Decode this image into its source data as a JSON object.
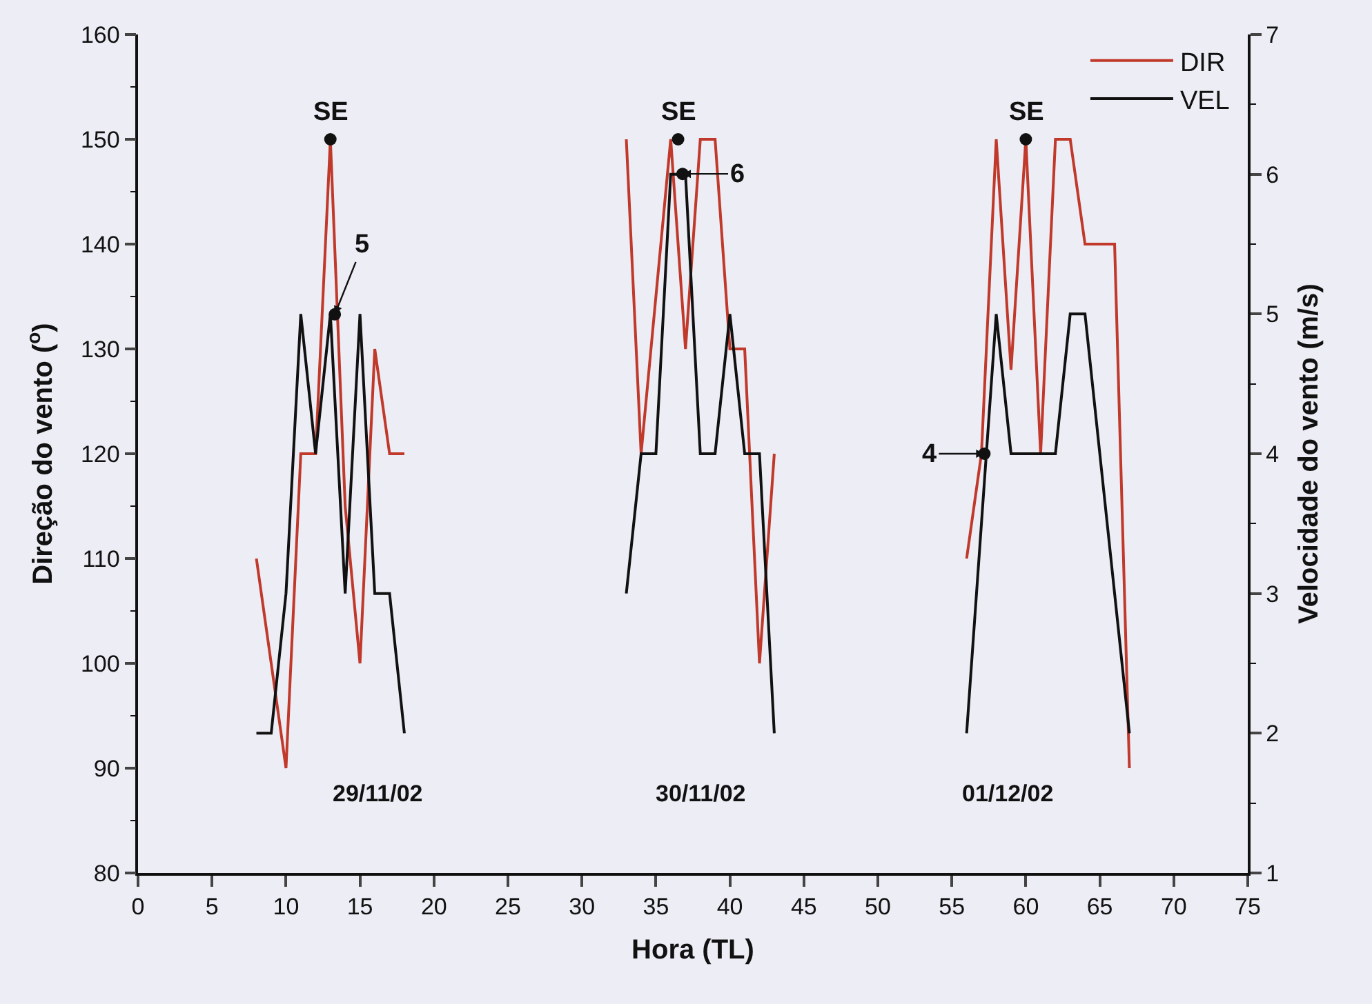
{
  "chart_data": {
    "type": "line",
    "xlabel": "Hora (TL)",
    "ylabel": "Direção do vento ($^{o}$)",
    "y2label": "Velocidade do vento (m/s)",
    "xlim": [
      0,
      75
    ],
    "xticks": [
      0,
      5,
      10,
      15,
      20,
      25,
      30,
      35,
      40,
      45,
      50,
      55,
      60,
      65,
      70,
      75
    ],
    "ylim": [
      80,
      160
    ],
    "yticks": [
      80,
      90,
      100,
      110,
      120,
      130,
      140,
      150,
      160
    ],
    "y2lim": [
      1,
      7
    ],
    "y2ticks": [
      1,
      2,
      3,
      4,
      5,
      6,
      7
    ],
    "grid": false,
    "legend": "top right",
    "marker": "none",
    "line_style": "solid",
    "series": [
      {
        "name": "DIR",
        "color": "#c0392b",
        "x": [
          8,
          10,
          11,
          12,
          13,
          14,
          15,
          16,
          17,
          18,
          25,
          33,
          34,
          36,
          37,
          38,
          39,
          40,
          41,
          42,
          43,
          50,
          56,
          57,
          58,
          59,
          60,
          61,
          62,
          63,
          64,
          66,
          67
        ],
        "values": [
          110,
          90,
          120,
          120,
          150,
          115,
          100,
          130,
          120,
          120,
          null,
          150,
          120,
          150,
          130,
          150,
          150,
          130,
          130,
          100,
          120,
          null,
          110,
          120,
          150,
          128,
          150,
          120,
          150,
          150,
          140,
          140,
          90
        ]
      },
      {
        "name": "VEL",
        "color": "#111111",
        "axis": "y2",
        "x": [
          8,
          9,
          10,
          11,
          12,
          13,
          14,
          15,
          16,
          17,
          18,
          25,
          33,
          34,
          35,
          36,
          37,
          38,
          39,
          40,
          41,
          42,
          43,
          50,
          56,
          58,
          59,
          60,
          61,
          62,
          63,
          64,
          67
        ],
        "values": [
          2,
          2,
          3,
          5,
          4,
          5,
          3,
          5,
          3,
          3,
          2,
          null,
          3,
          4,
          4,
          6,
          6,
          4,
          4,
          5,
          4,
          4,
          2,
          null,
          2,
          5,
          4,
          4,
          4,
          4,
          5,
          5,
          2
        ]
      }
    ],
    "annotations": [
      {
        "text": "SE",
        "x": 13,
        "y": 150
      },
      {
        "text": "SE",
        "x": 36.5,
        "y": 150
      },
      {
        "text": "SE",
        "x": 60,
        "y": 150
      },
      {
        "text": "5",
        "x": 13.3,
        "y": 133.3
      },
      {
        "text": "6",
        "x": 36.8,
        "y": 146.7
      },
      {
        "text": "4",
        "x": 57.2,
        "y": 120
      },
      "29/11/02",
      "30/11/02",
      "01/12/02"
    ]
  }
}
